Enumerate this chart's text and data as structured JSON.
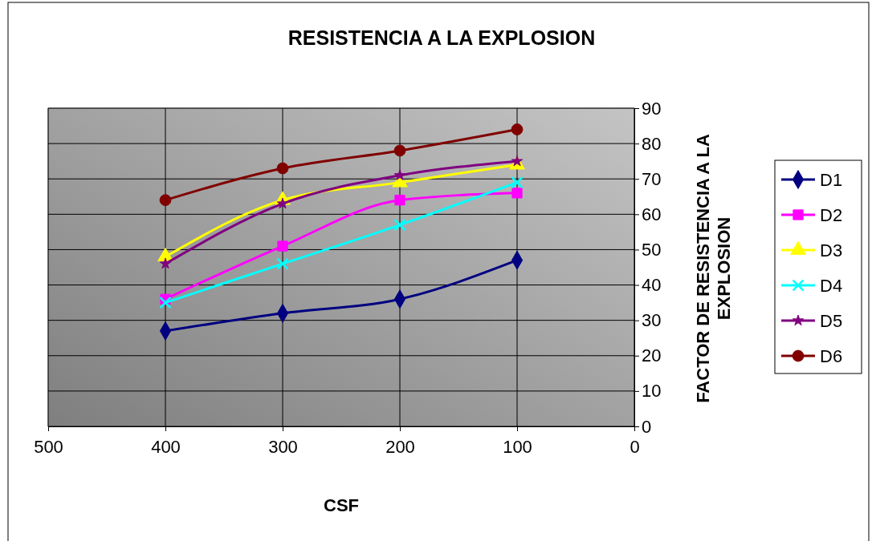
{
  "chart_data": {
    "type": "line",
    "title": "RESISTENCIA A LA EXPLOSION",
    "xlabel": "CSF",
    "ylabel": "FACTOR DE RESISTENCIA A LA EXPLOSION",
    "x": [
      400,
      300,
      200,
      100
    ],
    "xlim": [
      500,
      0
    ],
    "xticks": [
      500,
      400,
      300,
      200,
      100,
      0
    ],
    "ylim": [
      0,
      90
    ],
    "yticks": [
      0,
      10,
      20,
      30,
      40,
      50,
      60,
      70,
      80,
      90
    ],
    "grid": true,
    "legend": "right",
    "series": [
      {
        "name": "D1",
        "color": "#000080",
        "marker": "diamond",
        "values": [
          27,
          32,
          36,
          47
        ]
      },
      {
        "name": "D2",
        "color": "#ff00ff",
        "marker": "square",
        "values": [
          36,
          51,
          64,
          66
        ]
      },
      {
        "name": "D3",
        "color": "#ffff00",
        "marker": "triangle",
        "values": [
          48,
          64,
          69,
          74
        ]
      },
      {
        "name": "D4",
        "color": "#00ffff",
        "marker": "cross",
        "values": [
          35,
          46,
          57,
          69
        ]
      },
      {
        "name": "D5",
        "color": "#800080",
        "marker": "star",
        "values": [
          46,
          63,
          71,
          75
        ]
      },
      {
        "name": "D6",
        "color": "#800000",
        "marker": "circle",
        "values": [
          64,
          73,
          78,
          84
        ]
      }
    ]
  }
}
